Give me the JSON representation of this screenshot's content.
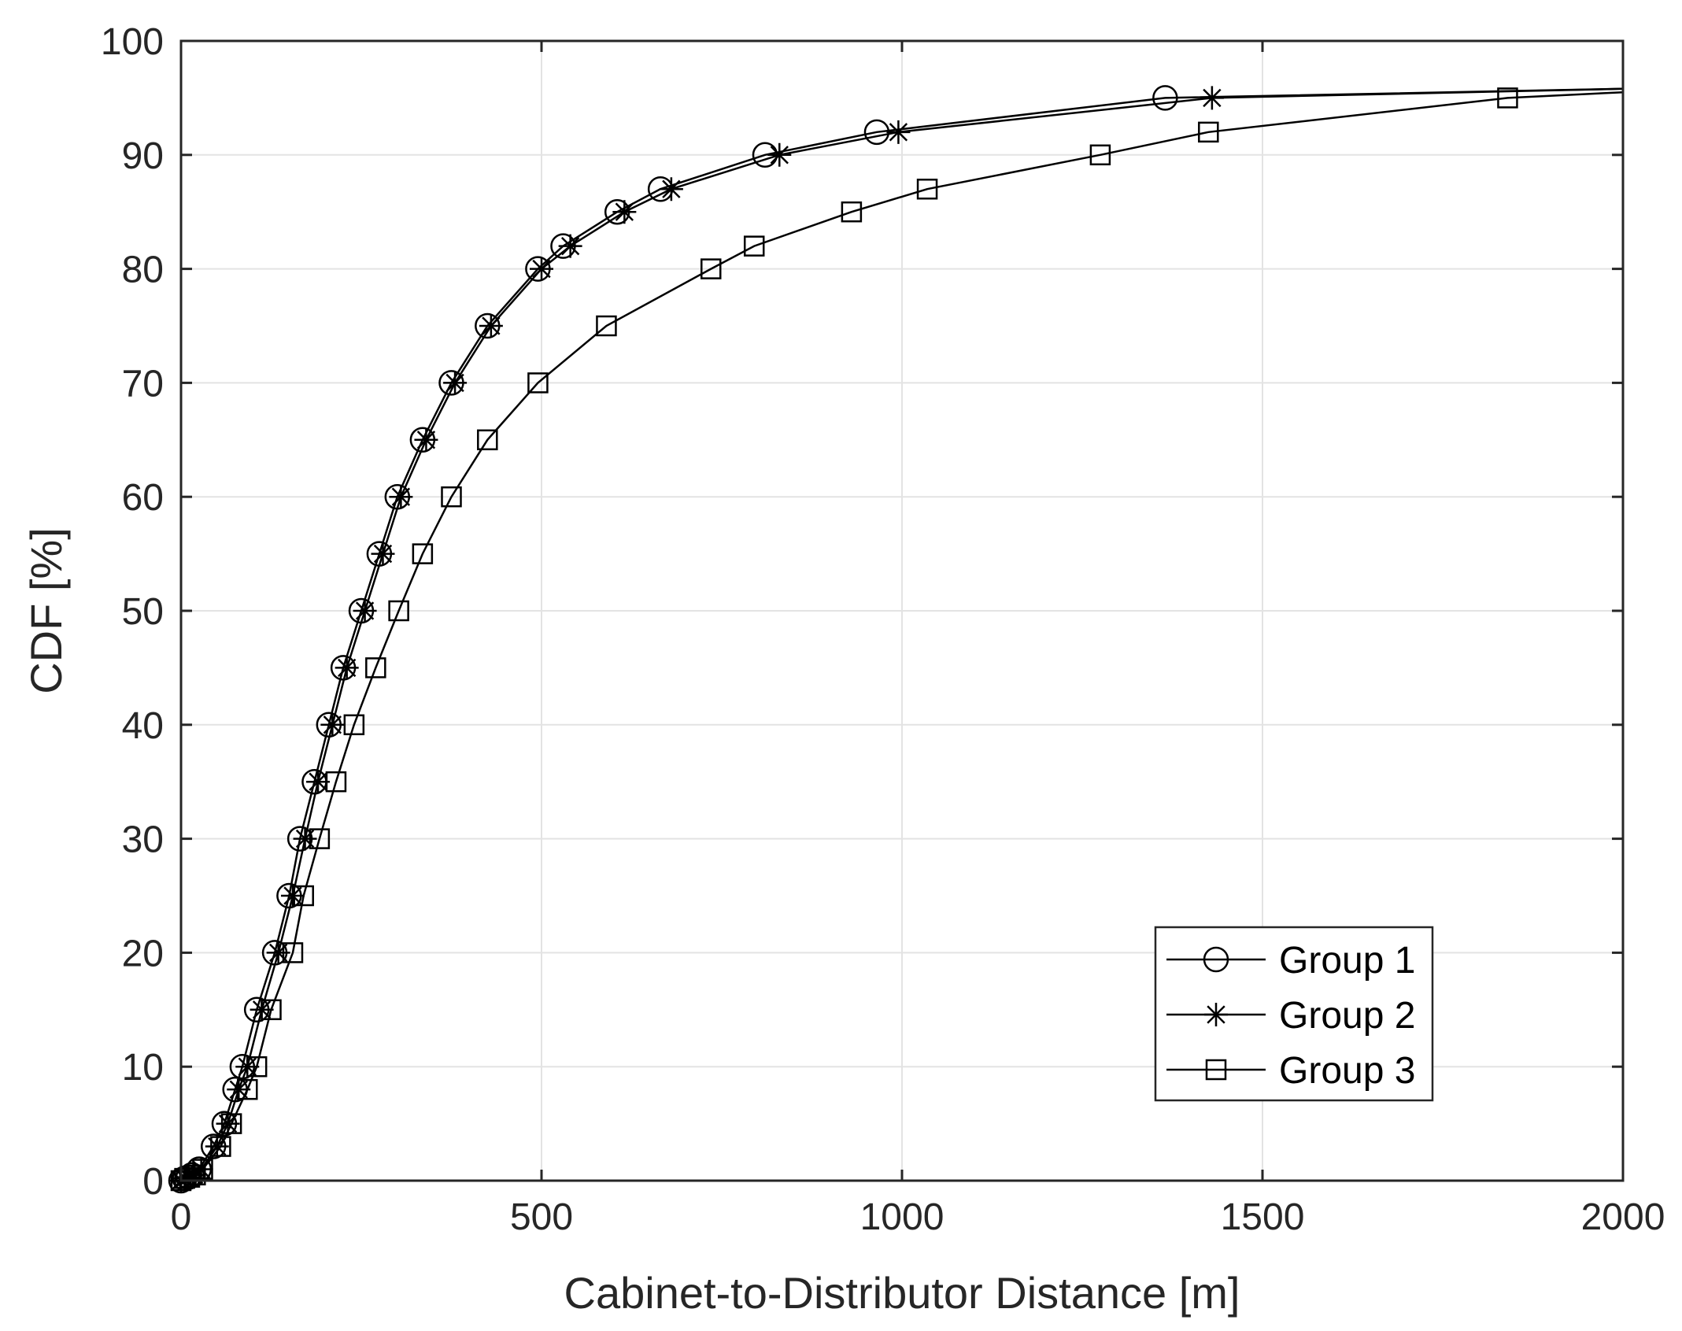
{
  "chart_data": {
    "type": "line",
    "title": "",
    "xlabel": "Cabinet-to-Distributor Distance [m]",
    "ylabel": "CDF [%]",
    "xlim": [
      0,
      2000
    ],
    "ylim": [
      0,
      100
    ],
    "xticks": [
      0,
      500,
      1000,
      1500,
      2000
    ],
    "yticks": [
      0,
      10,
      20,
      30,
      40,
      50,
      60,
      70,
      80,
      90,
      100
    ],
    "grid": true,
    "legend_position": "bottom-right",
    "series": [
      {
        "name": "Group 1",
        "marker": "circle",
        "x": [
          0,
          5,
          10,
          15,
          25,
          45,
          60,
          75,
          85,
          105,
          130,
          150,
          165,
          185,
          205,
          225,
          250,
          275,
          300,
          335,
          375,
          425,
          495,
          530,
          605,
          665,
          810,
          965,
          1365,
          2000
        ],
        "y": [
          0,
          0.2,
          0.3,
          0.5,
          1,
          3,
          5,
          8,
          10,
          15,
          20,
          25,
          30,
          35,
          40,
          45,
          50,
          55,
          60,
          65,
          70,
          75,
          80,
          82,
          85,
          87,
          90,
          92,
          95,
          95.8
        ]
      },
      {
        "name": "Group 2",
        "marker": "asterisk",
        "x": [
          0,
          5,
          10,
          18,
          28,
          50,
          65,
          80,
          92,
          112,
          135,
          155,
          172,
          190,
          210,
          230,
          255,
          280,
          305,
          340,
          380,
          430,
          500,
          540,
          615,
          680,
          830,
          995,
          1430,
          2000
        ],
        "y": [
          0,
          0.2,
          0.3,
          0.5,
          1,
          3,
          5,
          8,
          10,
          15,
          20,
          25,
          30,
          35,
          40,
          45,
          50,
          55,
          60,
          65,
          70,
          75,
          80,
          82,
          85,
          87,
          90,
          92,
          95,
          95.8
        ]
      },
      {
        "name": "Group 3",
        "marker": "square",
        "x": [
          0,
          5,
          12,
          20,
          30,
          55,
          70,
          92,
          105,
          125,
          155,
          170,
          192,
          215,
          240,
          270,
          302,
          335,
          375,
          425,
          495,
          590,
          735,
          795,
          930,
          1035,
          1275,
          1425,
          1840,
          2000
        ],
        "y": [
          0,
          0.2,
          0.3,
          0.5,
          1,
          3,
          5,
          8,
          10,
          15,
          20,
          25,
          30,
          35,
          40,
          45,
          50,
          55,
          60,
          65,
          70,
          75,
          80,
          82,
          85,
          87,
          90,
          92,
          95,
          95.5
        ]
      }
    ]
  }
}
